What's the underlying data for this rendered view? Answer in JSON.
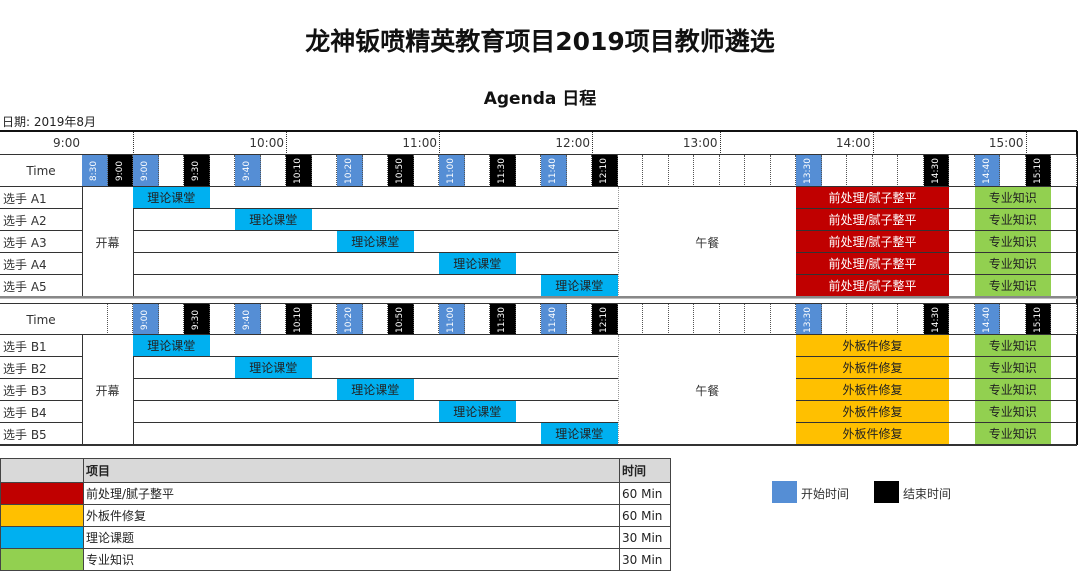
{
  "title": "龙神钣喷精英教育项目2019项目教师遴选",
  "subtitle": "Agenda 日程",
  "date_label": "日期: 2019年8月",
  "hours": [
    "9:00",
    "10:00",
    "11:00",
    "12:00",
    "13:00",
    "14:00",
    "15:00"
  ],
  "time_row_label": "Time",
  "colors": {
    "start_marker": "#558ED5",
    "end_marker": "#000000",
    "red": "#C00000",
    "orange": "#FFC000",
    "blue": "#00B0F0",
    "green": "#92D050"
  },
  "sections": [
    {
      "markers": [
        {
          "label": "8:30",
          "type": "start"
        },
        {
          "label": "9:00",
          "type": "end"
        },
        {
          "label": "9:00",
          "type": "start"
        },
        {
          "label": "",
          "type": ""
        },
        {
          "label": "9:30",
          "type": "end"
        },
        {
          "label": "",
          "type": ""
        },
        {
          "label": "9:40",
          "type": "start"
        },
        {
          "label": "",
          "type": ""
        },
        {
          "label": "10:10",
          "type": "end"
        },
        {
          "label": "",
          "type": ""
        },
        {
          "label": "10:20",
          "type": "start"
        },
        {
          "label": "",
          "type": ""
        },
        {
          "label": "10:50",
          "type": "end"
        },
        {
          "label": "",
          "type": ""
        },
        {
          "label": "11:00",
          "type": "start"
        },
        {
          "label": "",
          "type": ""
        },
        {
          "label": "11:30",
          "type": "end"
        },
        {
          "label": "",
          "type": ""
        },
        {
          "label": "11:40",
          "type": "start"
        },
        {
          "label": "",
          "type": ""
        },
        {
          "label": "12:10",
          "type": "end"
        },
        {
          "label": "",
          "type": ""
        },
        {
          "label": "",
          "type": ""
        },
        {
          "label": "",
          "type": ""
        },
        {
          "label": "",
          "type": ""
        },
        {
          "label": "",
          "type": ""
        },
        {
          "label": "",
          "type": ""
        },
        {
          "label": "",
          "type": ""
        },
        {
          "label": "13:30",
          "type": "start"
        },
        {
          "label": "",
          "type": ""
        },
        {
          "label": "",
          "type": ""
        },
        {
          "label": "",
          "type": ""
        },
        {
          "label": "",
          "type": ""
        },
        {
          "label": "14:30",
          "type": "end"
        },
        {
          "label": "",
          "type": ""
        },
        {
          "label": "14:40",
          "type": "start"
        },
        {
          "label": "",
          "type": ""
        },
        {
          "label": "15:10",
          "type": "end"
        },
        {
          "label": "",
          "type": ""
        }
      ],
      "opening": {
        "label": "开幕",
        "start": "8:30",
        "end": "9:00"
      },
      "lunch": {
        "label": "午餐",
        "after": "12:10",
        "before": "13:30"
      },
      "rows": [
        {
          "name": "选手 A1",
          "events": [
            {
              "task": "理论课堂",
              "color": "blue",
              "start": "9:00",
              "end": "9:30"
            },
            {
              "task": "前处理/腻子整平",
              "color": "red",
              "start": "13:30",
              "end": "14:30"
            },
            {
              "task": "专业知识",
              "color": "green",
              "start": "14:40",
              "end": "15:10"
            }
          ]
        },
        {
          "name": "选手 A2",
          "events": [
            {
              "task": "理论课堂",
              "color": "blue",
              "start": "9:40",
              "end": "10:10"
            },
            {
              "task": "前处理/腻子整平",
              "color": "red",
              "start": "13:30",
              "end": "14:30"
            },
            {
              "task": "专业知识",
              "color": "green",
              "start": "14:40",
              "end": "15:10"
            }
          ]
        },
        {
          "name": "选手 A3",
          "events": [
            {
              "task": "理论课堂",
              "color": "blue",
              "start": "10:20",
              "end": "10:50"
            },
            {
              "task": "前处理/腻子整平",
              "color": "red",
              "start": "13:30",
              "end": "14:30"
            },
            {
              "task": "专业知识",
              "color": "green",
              "start": "14:40",
              "end": "15:10"
            }
          ]
        },
        {
          "name": "选手 A4",
          "events": [
            {
              "task": "理论课堂",
              "color": "blue",
              "start": "11:00",
              "end": "11:30"
            },
            {
              "task": "前处理/腻子整平",
              "color": "red",
              "start": "13:30",
              "end": "14:30"
            },
            {
              "task": "专业知识",
              "color": "green",
              "start": "14:40",
              "end": "15:10"
            }
          ]
        },
        {
          "name": "选手 A5",
          "events": [
            {
              "task": "理论课堂",
              "color": "blue",
              "start": "11:40",
              "end": "12:10"
            },
            {
              "task": "前处理/腻子整平",
              "color": "red",
              "start": "13:30",
              "end": "14:30"
            },
            {
              "task": "专业知识",
              "color": "green",
              "start": "14:40",
              "end": "15:10"
            }
          ]
        }
      ]
    },
    {
      "markers": [
        {
          "label": "",
          "type": ""
        },
        {
          "label": "",
          "type": ""
        },
        {
          "label": "9:00",
          "type": "start"
        },
        {
          "label": "",
          "type": ""
        },
        {
          "label": "9:30",
          "type": "end"
        },
        {
          "label": "",
          "type": ""
        },
        {
          "label": "9:40",
          "type": "start"
        },
        {
          "label": "",
          "type": ""
        },
        {
          "label": "10:10",
          "type": "end"
        },
        {
          "label": "",
          "type": ""
        },
        {
          "label": "10:20",
          "type": "start"
        },
        {
          "label": "",
          "type": ""
        },
        {
          "label": "10:50",
          "type": "end"
        },
        {
          "label": "",
          "type": ""
        },
        {
          "label": "11:00",
          "type": "start"
        },
        {
          "label": "",
          "type": ""
        },
        {
          "label": "11:30",
          "type": "end"
        },
        {
          "label": "",
          "type": ""
        },
        {
          "label": "11:40",
          "type": "start"
        },
        {
          "label": "",
          "type": ""
        },
        {
          "label": "12:10",
          "type": "end"
        },
        {
          "label": "",
          "type": ""
        },
        {
          "label": "",
          "type": ""
        },
        {
          "label": "",
          "type": ""
        },
        {
          "label": "",
          "type": ""
        },
        {
          "label": "",
          "type": ""
        },
        {
          "label": "",
          "type": ""
        },
        {
          "label": "",
          "type": ""
        },
        {
          "label": "13:30",
          "type": "start"
        },
        {
          "label": "",
          "type": ""
        },
        {
          "label": "",
          "type": ""
        },
        {
          "label": "",
          "type": ""
        },
        {
          "label": "",
          "type": ""
        },
        {
          "label": "14:30",
          "type": "end"
        },
        {
          "label": "",
          "type": ""
        },
        {
          "label": "14:40",
          "type": "start"
        },
        {
          "label": "",
          "type": ""
        },
        {
          "label": "15:10",
          "type": "end"
        },
        {
          "label": "",
          "type": ""
        }
      ],
      "opening": {
        "label": "开幕",
        "start": "8:30",
        "end": "9:00"
      },
      "lunch": {
        "label": "午餐",
        "after": "12:10",
        "before": "13:30"
      },
      "rows": [
        {
          "name": "选手 B1",
          "events": [
            {
              "task": "理论课堂",
              "color": "blue",
              "start": "9:00",
              "end": "9:30"
            },
            {
              "task": "外板件修复",
              "color": "orange",
              "start": "13:30",
              "end": "14:30"
            },
            {
              "task": "专业知识",
              "color": "green",
              "start": "14:40",
              "end": "15:10"
            }
          ]
        },
        {
          "name": "选手 B2",
          "events": [
            {
              "task": "理论课堂",
              "color": "blue",
              "start": "9:40",
              "end": "10:10"
            },
            {
              "task": "外板件修复",
              "color": "orange",
              "start": "13:30",
              "end": "14:30"
            },
            {
              "task": "专业知识",
              "color": "green",
              "start": "14:40",
              "end": "15:10"
            }
          ]
        },
        {
          "name": "选手 B3",
          "events": [
            {
              "task": "理论课堂",
              "color": "blue",
              "start": "10:20",
              "end": "10:50"
            },
            {
              "task": "外板件修复",
              "color": "orange",
              "start": "13:30",
              "end": "14:30"
            },
            {
              "task": "专业知识",
              "color": "green",
              "start": "14:40",
              "end": "15:10"
            }
          ]
        },
        {
          "name": "选手 B4",
          "events": [
            {
              "task": "理论课堂",
              "color": "blue",
              "start": "11:00",
              "end": "11:30"
            },
            {
              "task": "外板件修复",
              "color": "orange",
              "start": "13:30",
              "end": "14:30"
            },
            {
              "task": "专业知识",
              "color": "green",
              "start": "14:40",
              "end": "15:10"
            }
          ]
        },
        {
          "name": "选手 B5",
          "events": [
            {
              "task": "理论课堂",
              "color": "blue",
              "start": "11:40",
              "end": "12:10"
            },
            {
              "task": "外板件修复",
              "color": "orange",
              "start": "13:30",
              "end": "14:30"
            },
            {
              "task": "专业知识",
              "color": "green",
              "start": "14:40",
              "end": "15:10"
            }
          ]
        }
      ]
    }
  ],
  "legend_table": {
    "headers": [
      "",
      "项目",
      "时间"
    ],
    "rows": [
      {
        "color": "red",
        "item": "前处理/腻子整平",
        "time": "60 Min"
      },
      {
        "color": "orange",
        "item": "外板件修复",
        "time": "60 Min"
      },
      {
        "color": "blue",
        "item": "理论课题",
        "time": "30 Min"
      },
      {
        "color": "green",
        "item": "专业知识",
        "time": "30 Min"
      }
    ]
  },
  "marker_legend": {
    "start": "开始时间",
    "end": "结束时间"
  }
}
